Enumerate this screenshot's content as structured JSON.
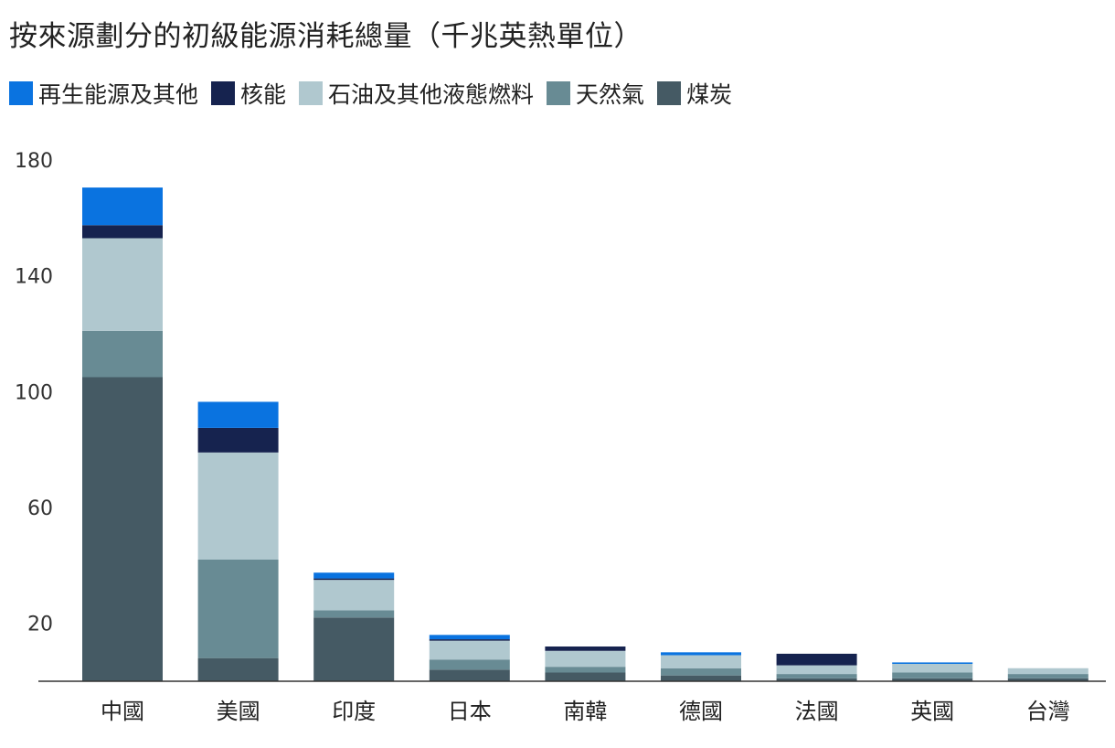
{
  "chart_data": {
    "type": "bar",
    "stacked": true,
    "title": "按來源劃分的初級能源消耗總量（千兆英熱單位）",
    "categories": [
      "中國",
      "美國",
      "印度",
      "日本",
      "南韓",
      "德國",
      "法國",
      "英國",
      "台灣"
    ],
    "series": [
      {
        "name": "煤炭",
        "color": "#455a64",
        "values": [
          105,
          8,
          22,
          4,
          3,
          2,
          1,
          1,
          1
        ]
      },
      {
        "name": "天然氣",
        "color": "#688b94",
        "values": [
          16,
          34,
          2.5,
          3.5,
          2,
          2.5,
          1.5,
          2,
          1.5
        ]
      },
      {
        "name": "石油及其他液態燃料",
        "color": "#b0c8cf",
        "values": [
          32,
          37,
          10.5,
          6.5,
          5.5,
          4.5,
          3,
          3,
          2
        ]
      },
      {
        "name": "核能",
        "color": "#16234f",
        "values": [
          4.5,
          8.5,
          0.5,
          0.5,
          1.5,
          0,
          4,
          0,
          0
        ]
      },
      {
        "name": "再生能源及其他",
        "color": "#0a73e0",
        "values": [
          13,
          9,
          2,
          1.5,
          0,
          1,
          0,
          0.5,
          0
        ]
      }
    ],
    "legend_order": [
      "再生能源及其他",
      "核能",
      "石油及其他液態燃料",
      "天然氣",
      "煤炭"
    ],
    "yticks": [
      20,
      60,
      100,
      140,
      180
    ],
    "ylim": [
      0,
      180
    ],
    "legend_position": "top-left",
    "grid": false
  }
}
